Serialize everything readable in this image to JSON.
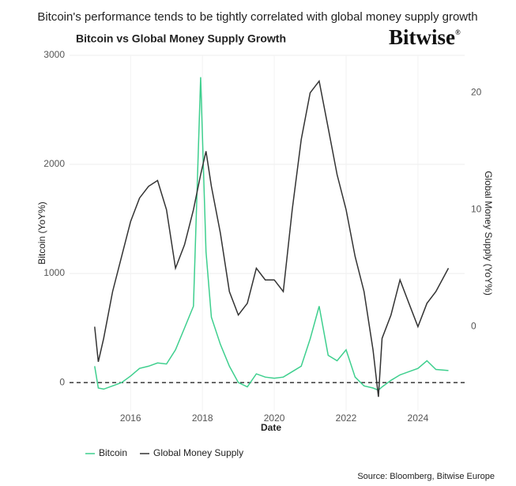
{
  "chart_data": {
    "type": "line",
    "headline": "Bitcoin's performance tends to be tightly correlated with global money supply growth",
    "title": "Bitcoin vs Global Money Supply Growth",
    "logo": "Bitwise",
    "logo_mark": "®",
    "x_label": "Date",
    "y_label": "Bitcoin (YoY%)",
    "y2_label": "Global Money Supply (YoY%)",
    "source": "Source: Bloomberg, Bitwise Europe",
    "x": [
      2015.0,
      2015.1,
      2015.25,
      2015.5,
      2015.75,
      2016.0,
      2016.25,
      2016.5,
      2016.75,
      2017.0,
      2017.25,
      2017.5,
      2017.75,
      2017.95,
      2018.1,
      2018.25,
      2018.5,
      2018.75,
      2019.0,
      2019.25,
      2019.5,
      2019.75,
      2020.0,
      2020.25,
      2020.5,
      2020.75,
      2021.0,
      2021.25,
      2021.5,
      2021.75,
      2022.0,
      2022.25,
      2022.5,
      2022.75,
      2022.9,
      2023.0,
      2023.25,
      2023.5,
      2023.75,
      2024.0,
      2024.25,
      2024.5,
      2024.85
    ],
    "series": [
      {
        "name": "Bitcoin",
        "color": "#3ecf8e",
        "axis": "y",
        "values": [
          150,
          -50,
          -60,
          -30,
          0,
          60,
          130,
          150,
          180,
          170,
          300,
          500,
          700,
          2800,
          1200,
          600,
          350,
          150,
          0,
          -40,
          80,
          50,
          40,
          50,
          100,
          150,
          400,
          700,
          250,
          200,
          300,
          50,
          -30,
          -50,
          -70,
          -40,
          20,
          70,
          100,
          130,
          200,
          120,
          110
        ]
      },
      {
        "name": "Global Money Supply",
        "color": "#333333",
        "axis": "y2",
        "values": [
          0,
          -3,
          -1,
          3,
          6,
          9,
          11,
          12,
          12.5,
          10,
          5,
          7,
          10,
          13,
          15,
          12,
          8,
          3,
          1,
          2,
          5,
          4,
          4,
          3,
          10,
          16,
          20,
          21,
          17,
          13,
          10,
          6,
          3,
          -2,
          -6,
          -1,
          1,
          4,
          2,
          0,
          2,
          3,
          5
        ]
      }
    ],
    "xlim": [
      2014.3,
      2025.3
    ],
    "xticks": [
      2016,
      2018,
      2020,
      2022,
      2024
    ],
    "ylim": [
      -260,
      3000
    ],
    "yticks": [
      0,
      1000,
      2000,
      3000
    ],
    "y2lim": [
      -7.2,
      23.2
    ],
    "y2ticks": [
      0,
      10,
      20
    ],
    "reference_line": 0,
    "grid": true,
    "legend": "bottom-left"
  }
}
